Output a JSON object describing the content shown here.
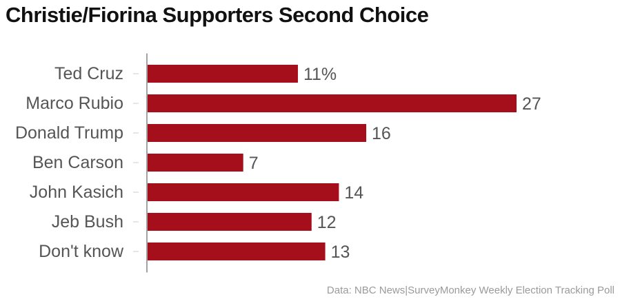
{
  "chart_data": {
    "type": "bar",
    "orientation": "horizontal",
    "title": "Christie/Fiorina Supporters Second Choice",
    "categories": [
      "Ted Cruz",
      "Marco Rubio",
      "Donald Trump",
      "Ben Carson",
      "John Kasich",
      "Jeb Bush",
      "Don't know"
    ],
    "values": [
      11,
      27,
      16,
      7,
      14,
      12,
      13
    ],
    "value_labels": [
      "11%",
      "27",
      "16",
      "7",
      "14",
      "12",
      "13"
    ],
    "xlim": [
      0,
      27
    ],
    "bar_color": "#a50f1b",
    "grid": false,
    "source": "Data: NBC News|SurveyMonkey Weekly Election Tracking Poll"
  }
}
